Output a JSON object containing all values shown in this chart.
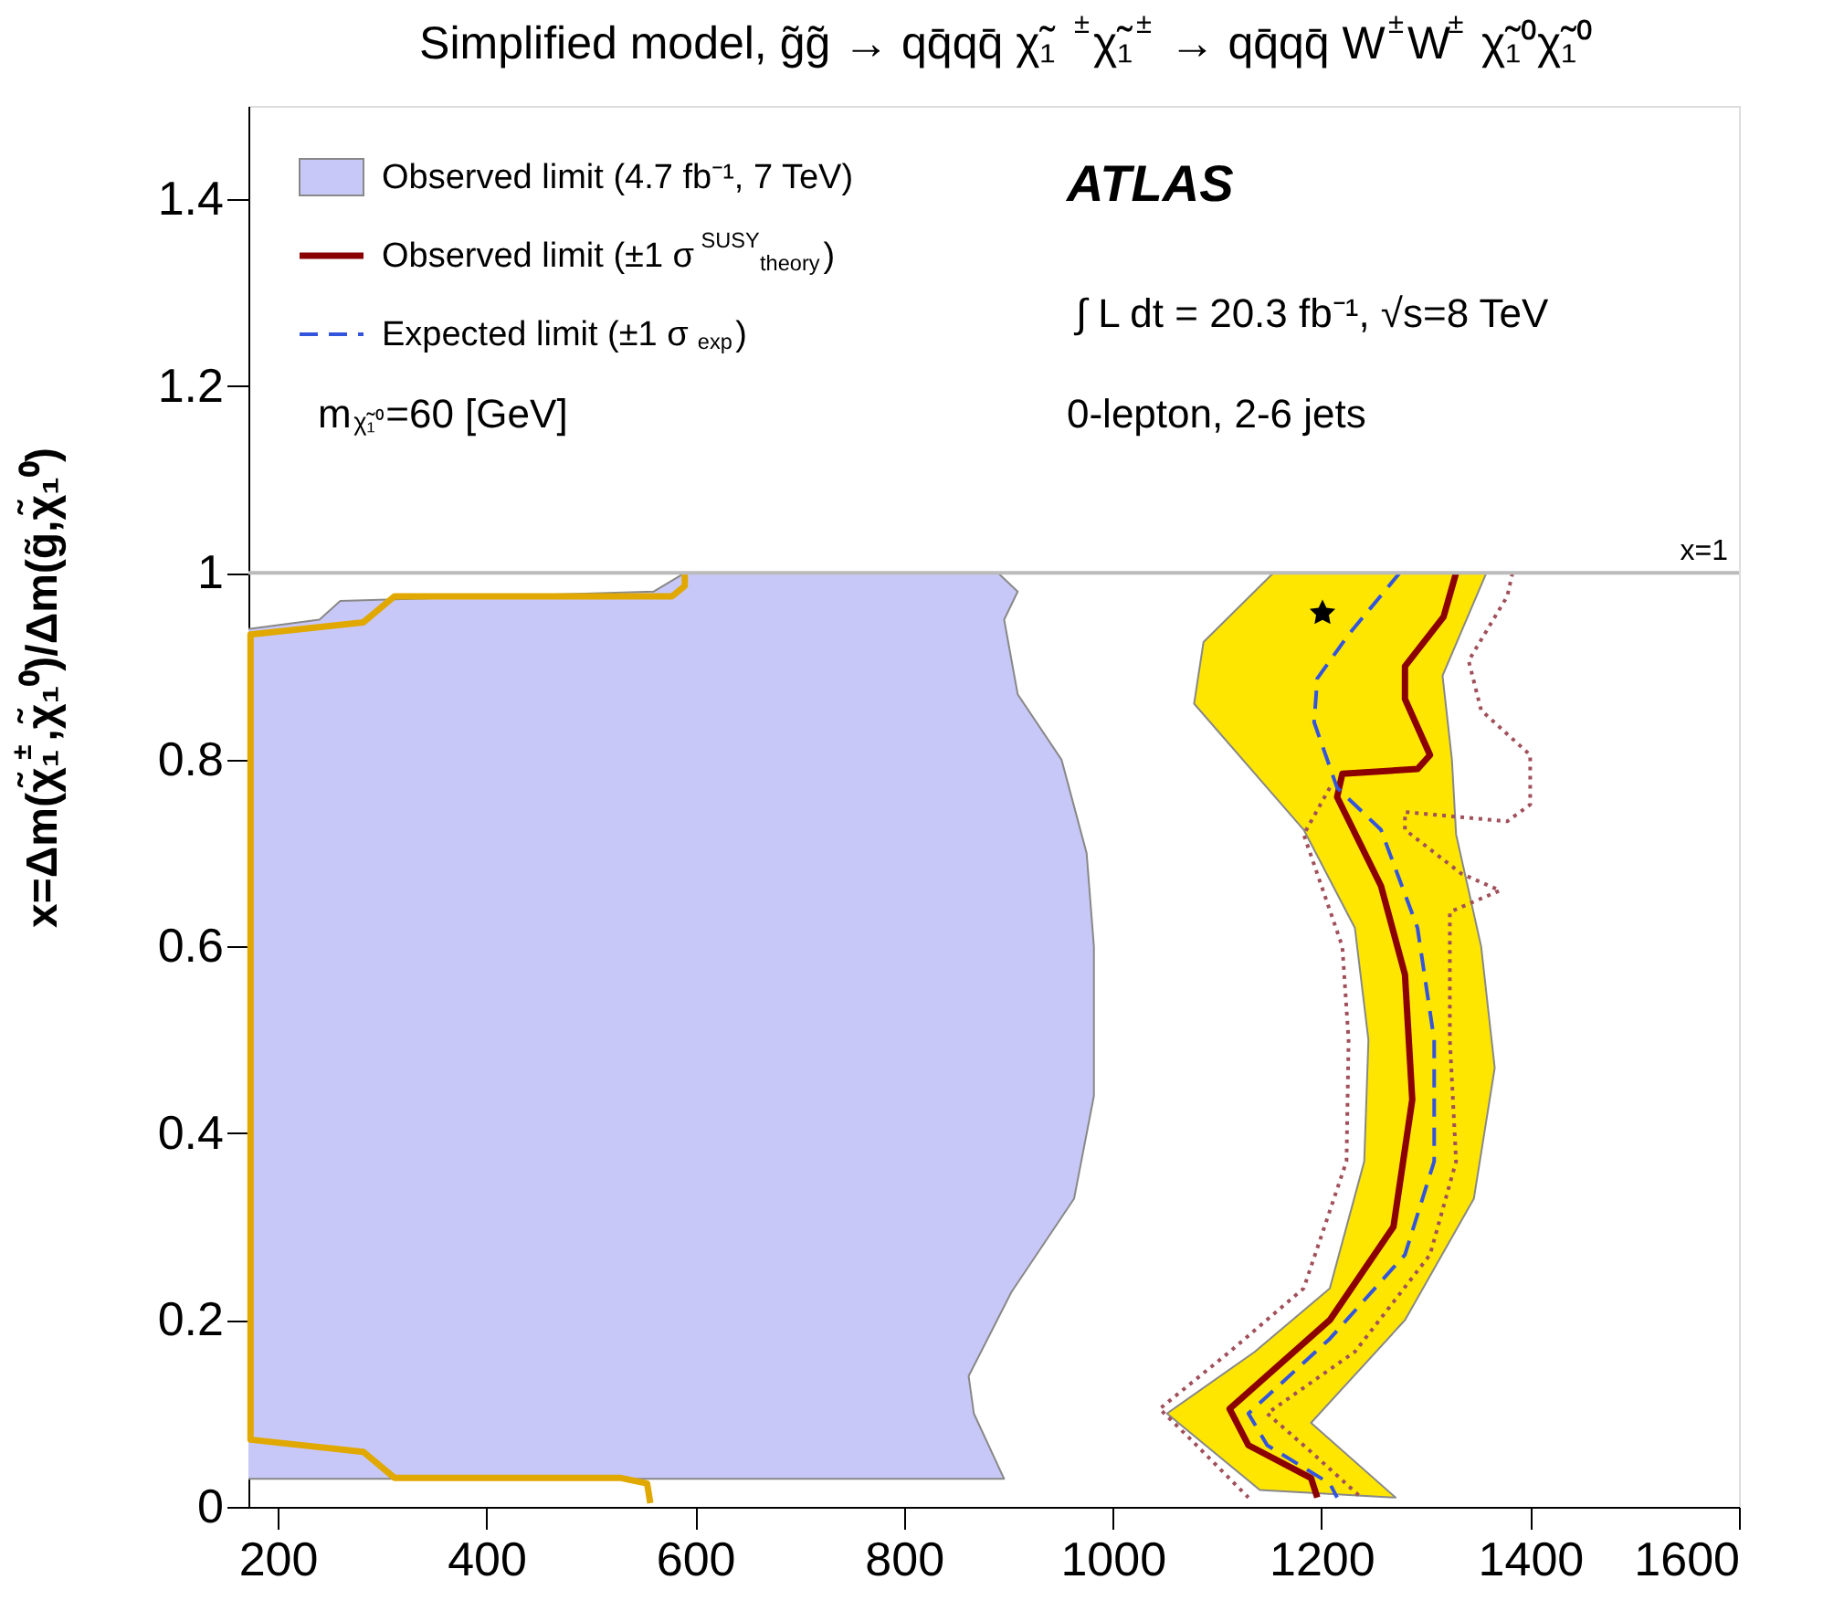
{
  "chart_data": {
    "type": "line",
    "title": "Simplified model, g̃g̃ → qq̄qq̄ χ̃₁$^{±}$χ̃₁$^{±}$ → qq̄qq̄ W$^{±}$W$^{±}$ χ̃₁⁰χ̃₁⁰",
    "ylabel": "x=Δm(χ̃₁$^{±}$,χ̃₁⁰)/Δm(g̃,χ̃₁⁰)",
    "xlim": [
      172,
      1600
    ],
    "xticks": [
      200,
      400,
      600,
      800,
      1000,
      1200,
      1400,
      1600
    ],
    "ylim": [
      0,
      1.5
    ],
    "yticks": [
      0,
      0.2,
      0.4,
      0.6,
      0.8,
      1,
      1.2,
      1.4
    ],
    "grid": false,
    "legend": "top left",
    "series": [
      {
        "name": "Observed limit (4.7 fb⁻¹, 7 TeV)",
        "type": "area",
        "color": "#c8c8f8",
        "x": [
          172,
          896,
          867,
          862,
          903,
          963,
          982,
          982,
          975,
          951,
          909,
          896,
          909,
          890,
          590,
          560,
          260,
          240,
          172
        ],
        "values": [
          0.03,
          0.03,
          0.1,
          0.14,
          0.23,
          0.33,
          0.44,
          0.6,
          0.7,
          0.8,
          0.87,
          0.95,
          0.98,
          1.0,
          1.0,
          0.98,
          0.97,
          0.95,
          0.94
        ]
      },
      {
        "type": "line",
        "color": "#e0a800",
        "line_style": "solid",
        "x": [
          557,
          554,
          529,
          312,
          282,
          174,
          174,
          282,
          312,
          578,
          590,
          590
        ],
        "values": [
          0.004,
          0.025,
          0.031,
          0.031,
          0.059,
          0.072,
          0.934,
          0.947,
          0.975,
          0.975,
          0.986,
          1.0
        ]
      },
      {
        "type": "area",
        "color": "#ffe600",
        "x": [
          1154,
          1087,
          1078,
          1148,
          1183,
          1232,
          1245,
          1241,
          1208,
          1136,
          1052,
          1141,
          1271,
          1190,
          1280,
          1346,
          1366,
          1353,
          1329,
          1325,
          1316,
          1358
        ],
        "values": [
          1.0,
          0.926,
          0.86,
          0.77,
          0.725,
          0.62,
          0.5,
          0.37,
          0.234,
          0.166,
          0.1,
          0.018,
          0.01,
          0.09,
          0.2,
          0.33,
          0.47,
          0.6,
          0.72,
          0.8,
          0.89,
          1.0
        ]
      },
      {
        "type": "line",
        "color": "#a0505a",
        "line_style": "dotted",
        "x": [
          1208,
          1183,
          1220,
          1226,
          1224,
          1183,
          1112,
          1045,
          1075,
          1130
        ],
        "values": [
          0.77,
          0.72,
          0.6,
          0.5,
          0.37,
          0.234,
          0.166,
          0.105,
          0.072,
          0.01
        ]
      },
      {
        "type": "line",
        "color": "#a0505a",
        "line_style": "dotted",
        "x": [
          1383,
          1378,
          1341,
          1353,
          1400,
          1400,
          1378,
          1280,
          1280,
          1334,
          1371,
          1323,
          1323,
          1329,
          1304,
          1232,
          1148,
          1190,
          1238
        ],
        "values": [
          1.0,
          0.975,
          0.906,
          0.853,
          0.805,
          0.752,
          0.734,
          0.744,
          0.725,
          0.678,
          0.66,
          0.637,
          0.5,
          0.37,
          0.27,
          0.166,
          0.1,
          0.059,
          0.01
        ]
      },
      {
        "name": "Observed limit (±1 σ$^{SUSY}$$_{theory}$)",
        "type": "line",
        "color": "#8b0000",
        "line_style": "solid",
        "x": [
          1329,
          1317,
          1280,
          1280,
          1304,
          1292,
          1220,
          1215,
          1257,
          1280,
          1287,
          1269,
          1208,
          1112,
          1130,
          1190,
          1196
        ],
        "values": [
          1.0,
          0.953,
          0.9,
          0.865,
          0.805,
          0.79,
          0.785,
          0.76,
          0.665,
          0.57,
          0.436,
          0.3,
          0.2,
          0.105,
          0.066,
          0.031,
          0.01
        ]
      },
      {
        "name": "Expected limit (±1 σ$_{exp}$)",
        "type": "line",
        "color": "#3355dd",
        "line_style": "dashed",
        "x": [
          1275,
          1226,
          1196,
          1193,
          1215,
          1257,
          1292,
          1308,
          1308,
          1280,
          1208,
          1130,
          1148,
          1208,
          1215
        ],
        "values": [
          1.0,
          0.934,
          0.887,
          0.84,
          0.77,
          0.725,
          0.62,
          0.5,
          0.37,
          0.27,
          0.18,
          0.1,
          0.066,
          0.025,
          0.01
        ]
      },
      {
        "type": "scatter",
        "marker": "star",
        "color": "#000000",
        "x": [
          1201
        ],
        "values": [
          0.957
        ]
      }
    ],
    "ref_lines": [
      {
        "axis": "y",
        "value": 1,
        "label": "x=1",
        "color": "#bbbbbb"
      }
    ],
    "annotations": [
      "ATLAS",
      "∫ L dt = 20.3 fb⁻¹,  √s=8 TeV",
      "0-lepton, 2-6 jets",
      "m$_{χ̃₁⁰}$=60 [GeV]"
    ]
  }
}
